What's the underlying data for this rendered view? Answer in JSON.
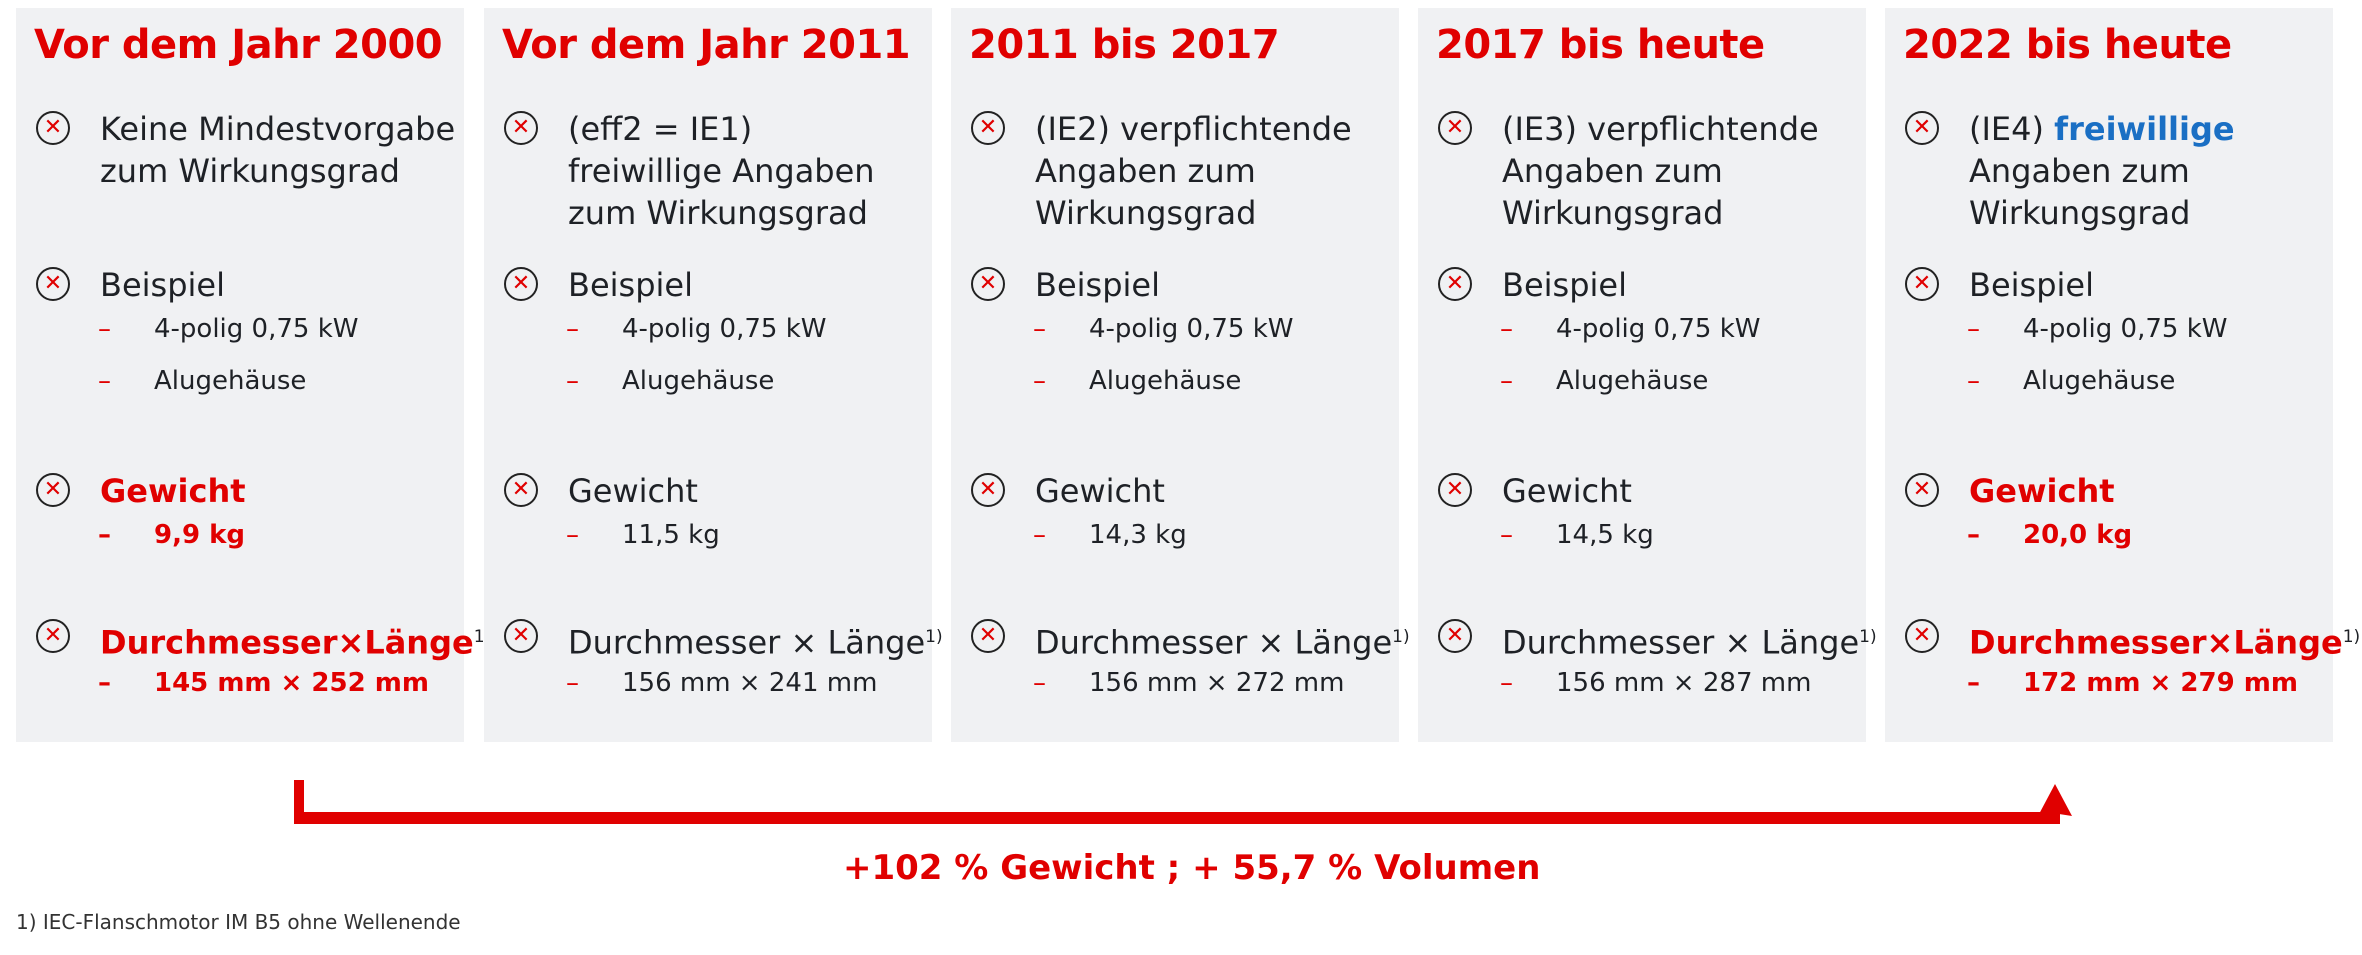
{
  "colors": {
    "accent": "#e00000",
    "panel": "#f0f1f3",
    "highlight_blue": "#1a6fc4"
  },
  "panels": [
    {
      "title": "Vor dem Jahr 2000",
      "desc1": "Keine Mindestvorgabe",
      "desc2": "zum Wirkungsgrad",
      "desc3": "",
      "example": "Beispiel",
      "ex1": "4-polig 0,75 kW",
      "ex2": "Alugehäuse",
      "weight_label": "Gewicht",
      "weight": "9,9 kg",
      "dim_label": "Durchmesser×Länge",
      "dim_sup": "1)",
      "dim": "145 mm × 252 mm",
      "highlight": true
    },
    {
      "title": "Vor dem Jahr 2011",
      "desc1": "(eff2 = IE1)",
      "desc2": "freiwillige Angaben",
      "desc3": "zum Wirkungsgrad",
      "example": "Beispiel",
      "ex1": "4-polig 0,75 kW",
      "ex2": "Alugehäuse",
      "weight_label": "Gewicht",
      "weight": "11,5 kg",
      "dim_label": "Durchmesser × Länge",
      "dim_sup": "1)",
      "dim": "156 mm × 241 mm",
      "highlight": false
    },
    {
      "title": "2011 bis 2017",
      "desc1": "(IE2) verpflichtende",
      "desc2": "Angaben zum",
      "desc3": "Wirkungsgrad",
      "example": "Beispiel",
      "ex1": "4-polig 0,75 kW",
      "ex2": "Alugehäuse",
      "weight_label": "Gewicht",
      "weight": "14,3 kg",
      "dim_label": "Durchmesser × Länge",
      "dim_sup": "1)",
      "dim": "156 mm × 272 mm",
      "highlight": false
    },
    {
      "title": "2017 bis heute",
      "desc1": "(IE3) verpflichtende",
      "desc2": "Angaben zum",
      "desc3": "Wirkungsgrad",
      "example": "Beispiel",
      "ex1": "4-polig 0,75 kW",
      "ex2": "Alugehäuse",
      "weight_label": "Gewicht",
      "weight": "14,5 kg",
      "dim_label": "Durchmesser × Länge",
      "dim_sup": "1)",
      "dim": "156 mm × 287 mm",
      "highlight": false
    },
    {
      "title": "2022 bis heute",
      "desc1": "(IE4) ",
      "desc1_blue": "freiwillige",
      "desc2": "Angaben zum",
      "desc3": "Wirkungsgrad",
      "example": "Beispiel",
      "ex1": "4-polig 0,75 kW",
      "ex2": "Alugehäuse",
      "weight_label": "Gewicht",
      "weight": "20,0 kg",
      "dim_label": "Durchmesser×Länge",
      "dim_sup": "1)",
      "dim": "172 mm × 279 mm",
      "highlight": true
    }
  ],
  "summary": "+102 % Gewicht ; + 55,7 % Volumen",
  "footnote": "1) IEC-Flanschmotor IM B5 ohne Wellenende",
  "icons": {
    "item": "circle-x-icon",
    "sub": "dash-icon",
    "arrow": "arrow-up-icon"
  }
}
